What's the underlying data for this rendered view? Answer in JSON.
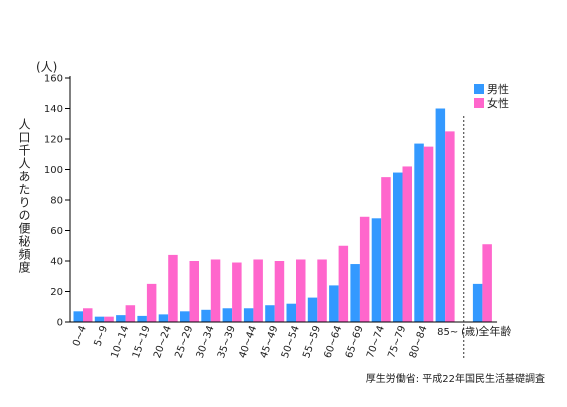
{
  "chart_data": {
    "type": "bar",
    "title": "",
    "ylabel": "人口千人あたりの便秘頻度",
    "yunit": "(人)",
    "xunit": "(歳)",
    "xlabel": "",
    "ylim": [
      0,
      160
    ],
    "yticks": [
      0,
      20,
      40,
      60,
      80,
      100,
      120,
      140,
      160
    ],
    "grid": false,
    "legend_position": "top-right",
    "categories": [
      "0~4",
      "5~9",
      "10~14",
      "15~19",
      "20~24",
      "25~29",
      "30~34",
      "35~39",
      "40~44",
      "45~49",
      "50~54",
      "55~59",
      "60~64",
      "65~69",
      "70~74",
      "75~79",
      "80~84",
      "85~",
      "全年齢"
    ],
    "series": [
      {
        "name": "男性",
        "color": "#3399ff",
        "values": [
          7,
          3.5,
          4.5,
          4,
          5,
          7,
          8,
          9,
          9,
          11,
          12,
          16,
          24,
          38,
          68,
          98,
          117,
          140,
          25
        ]
      },
      {
        "name": "女性",
        "color": "#ff66cc",
        "values": [
          9,
          3.5,
          11,
          25,
          44,
          40,
          41,
          39,
          41,
          40,
          41,
          41,
          50,
          69,
          95,
          102,
          115,
          125,
          51
        ]
      }
    ],
    "separator_before_category": "全年齢",
    "source": "厚生労働省: 平成22年国民生活基礎調査"
  }
}
